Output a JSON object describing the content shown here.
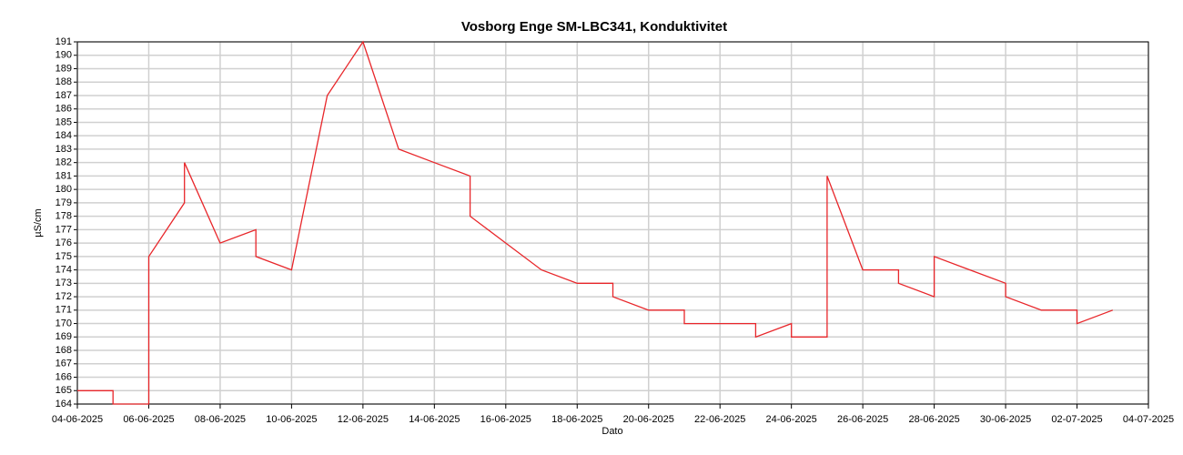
{
  "chart_data": {
    "type": "line",
    "title": "Vosborg Enge SM-LBC341, Konduktivitet",
    "xlabel": "Dato",
    "ylabel": "µS/cm",
    "color": "#e8262a",
    "grid": true,
    "x": [
      "2025-06-04",
      "2025-06-05",
      "2025-06-05",
      "2025-06-06",
      "2025-06-06",
      "2025-06-07",
      "2025-06-07",
      "2025-06-08",
      "2025-06-09",
      "2025-06-09",
      "2025-06-10",
      "2025-06-11",
      "2025-06-12",
      "2025-06-13",
      "2025-06-14",
      "2025-06-15",
      "2025-06-15",
      "2025-06-16",
      "2025-06-17",
      "2025-06-18",
      "2025-06-19",
      "2025-06-19",
      "2025-06-20",
      "2025-06-21",
      "2025-06-21",
      "2025-06-22",
      "2025-06-23",
      "2025-06-23",
      "2025-06-24",
      "2025-06-24",
      "2025-06-25",
      "2025-06-25",
      "2025-06-26",
      "2025-06-27",
      "2025-06-27",
      "2025-06-28",
      "2025-06-28",
      "2025-06-29",
      "2025-06-30",
      "2025-06-30",
      "2025-07-01",
      "2025-07-02",
      "2025-07-02",
      "2025-07-03"
    ],
    "values": [
      165,
      165,
      164,
      164,
      175,
      179,
      182,
      176,
      177,
      175,
      174,
      187,
      191,
      183,
      182,
      181,
      178,
      176,
      174,
      173,
      173,
      172,
      171,
      171,
      170,
      170,
      170,
      169,
      170,
      169,
      169,
      181,
      174,
      174,
      173,
      172,
      175,
      174,
      173,
      172,
      171,
      171,
      170,
      171
    ],
    "xlim": [
      "2025-06-04",
      "2025-07-04"
    ],
    "xticks": [
      {
        "value": "2025-06-04",
        "label": "04-06-2025"
      },
      {
        "value": "2025-06-06",
        "label": "06-06-2025"
      },
      {
        "value": "2025-06-08",
        "label": "08-06-2025"
      },
      {
        "value": "2025-06-10",
        "label": "10-06-2025"
      },
      {
        "value": "2025-06-12",
        "label": "12-06-2025"
      },
      {
        "value": "2025-06-14",
        "label": "14-06-2025"
      },
      {
        "value": "2025-06-16",
        "label": "16-06-2025"
      },
      {
        "value": "2025-06-18",
        "label": "18-06-2025"
      },
      {
        "value": "2025-06-20",
        "label": "20-06-2025"
      },
      {
        "value": "2025-06-22",
        "label": "22-06-2025"
      },
      {
        "value": "2025-06-24",
        "label": "24-06-2025"
      },
      {
        "value": "2025-06-26",
        "label": "26-06-2025"
      },
      {
        "value": "2025-06-28",
        "label": "28-06-2025"
      },
      {
        "value": "2025-06-30",
        "label": "30-06-2025"
      },
      {
        "value": "2025-07-02",
        "label": "02-07-2025"
      },
      {
        "value": "2025-07-04",
        "label": "04-07-2025"
      }
    ],
    "ylim": [
      164,
      191
    ],
    "yticks": [
      164,
      165,
      166,
      167,
      168,
      169,
      170,
      171,
      172,
      173,
      174,
      175,
      176,
      177,
      178,
      179,
      180,
      181,
      182,
      183,
      184,
      185,
      186,
      187,
      188,
      189,
      190,
      191
    ]
  }
}
